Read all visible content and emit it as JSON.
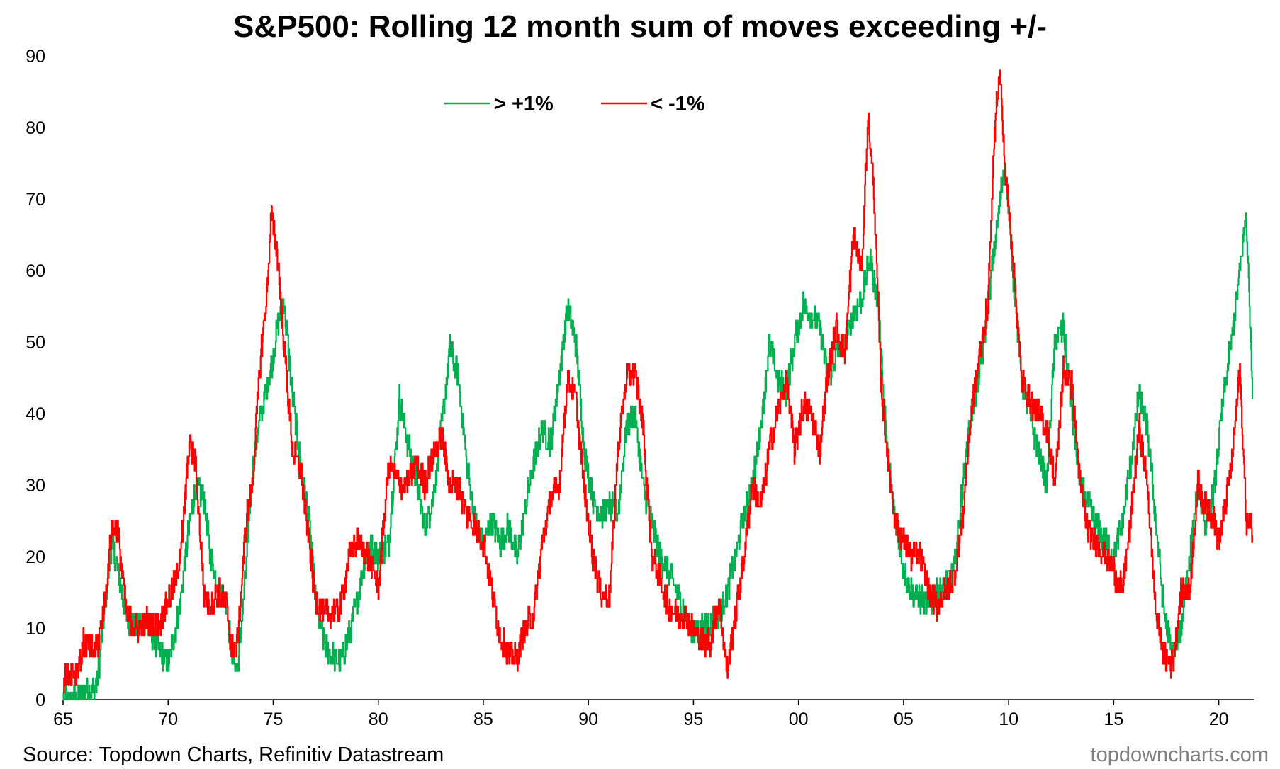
{
  "chart_data": {
    "type": "line",
    "title": "S&P500: Rolling 12 month sum of moves exceeding +/-",
    "xlabel": "",
    "ylabel": "",
    "xlim": [
      1965,
      2021.7
    ],
    "ylim": [
      0,
      90
    ],
    "yticks": [
      0,
      10,
      20,
      30,
      40,
      50,
      60,
      70,
      80,
      90
    ],
    "xticks": [
      {
        "year": 1965,
        "label": "65"
      },
      {
        "year": 1970,
        "label": "70"
      },
      {
        "year": 1975,
        "label": "75"
      },
      {
        "year": 1980,
        "label": "80"
      },
      {
        "year": 1985,
        "label": "85"
      },
      {
        "year": 1990,
        "label": "90"
      },
      {
        "year": 1995,
        "label": "95"
      },
      {
        "year": 2000,
        "label": "00"
      },
      {
        "year": 2005,
        "label": "05"
      },
      {
        "year": 2010,
        "label": "10"
      },
      {
        "year": 2015,
        "label": "15"
      },
      {
        "year": 2020,
        "label": "20"
      }
    ],
    "grid": false,
    "legend_position": "top-center",
    "series": [
      {
        "name": "> +1%",
        "color": "#00b050",
        "x": [
          1965.0,
          1965.5,
          1966.0,
          1966.3,
          1966.6,
          1967.0,
          1967.3,
          1967.6,
          1968.0,
          1968.5,
          1969.0,
          1969.5,
          1970.0,
          1970.5,
          1970.9,
          1971.3,
          1971.7,
          1972.0,
          1972.4,
          1972.8,
          1973.0,
          1973.3,
          1973.7,
          1974.0,
          1974.4,
          1974.8,
          1975.2,
          1975.5,
          1975.9,
          1976.3,
          1976.7,
          1977.0,
          1977.4,
          1977.8,
          1978.2,
          1978.6,
          1979.0,
          1979.5,
          1980.0,
          1980.5,
          1981.0,
          1981.4,
          1981.8,
          1982.2,
          1982.6,
          1983.0,
          1983.4,
          1983.8,
          1984.2,
          1984.6,
          1985.0,
          1985.4,
          1985.8,
          1986.2,
          1986.6,
          1987.0,
          1987.4,
          1987.8,
          1988.2,
          1988.6,
          1989.0,
          1989.4,
          1989.8,
          1990.2,
          1990.6,
          1991.0,
          1991.4,
          1991.8,
          1992.2,
          1992.6,
          1993.0,
          1993.4,
          1993.8,
          1994.2,
          1994.6,
          1995.0,
          1995.4,
          1995.8,
          1996.2,
          1996.6,
          1997.0,
          1997.4,
          1997.8,
          1998.2,
          1998.6,
          1999.0,
          1999.4,
          1999.8,
          2000.2,
          2000.6,
          2001.0,
          2001.4,
          2001.8,
          2002.2,
          2002.6,
          2003.0,
          2003.4,
          2003.8,
          2004.2,
          2004.6,
          2005.0,
          2005.4,
          2005.8,
          2006.2,
          2006.6,
          2007.0,
          2007.4,
          2007.8,
          2008.2,
          2008.6,
          2009.0,
          2009.4,
          2009.8,
          2010.2,
          2010.6,
          2011.0,
          2011.4,
          2011.8,
          2012.2,
          2012.6,
          2013.0,
          2013.4,
          2013.8,
          2014.2,
          2014.6,
          2015.0,
          2015.4,
          2015.8,
          2016.2,
          2016.6,
          2017.0,
          2017.4,
          2017.8,
          2018.2,
          2018.6,
          2019.0,
          2019.4,
          2019.8,
          2020.2,
          2020.6,
          2021.0,
          2021.3,
          2021.6
        ],
        "y": [
          0,
          0,
          1,
          1,
          2,
          13,
          22,
          18,
          12,
          10,
          11,
          7,
          5,
          12,
          22,
          30,
          28,
          20,
          16,
          13,
          7,
          4,
          18,
          32,
          40,
          45,
          52,
          56,
          43,
          33,
          25,
          14,
          8,
          6,
          5,
          9,
          14,
          22,
          20,
          22,
          42,
          36,
          31,
          24,
          28,
          38,
          49,
          45,
          33,
          25,
          22,
          25,
          22,
          24,
          20,
          27,
          33,
          38,
          36,
          45,
          55,
          50,
          35,
          28,
          26,
          27,
          26,
          38,
          40,
          30,
          25,
          20,
          18,
          15,
          12,
          9,
          10,
          11,
          12,
          15,
          20,
          26,
          30,
          38,
          50,
          45,
          43,
          50,
          55,
          54,
          52,
          45,
          48,
          50,
          54,
          56,
          62,
          55,
          35,
          25,
          18,
          15,
          14,
          13,
          15,
          16,
          18,
          30,
          40,
          45,
          55,
          65,
          75,
          60,
          45,
          40,
          35,
          30,
          50,
          52,
          40,
          30,
          27,
          24,
          22,
          20,
          25,
          33,
          43,
          38,
          25,
          12,
          6,
          10,
          20,
          30,
          24,
          30,
          42,
          50,
          60,
          68,
          43
        ]
      },
      {
        "name": "< -1%",
        "color": "#ff0000",
        "x": [
          1965.0,
          1965.3,
          1965.6,
          1966.0,
          1966.3,
          1966.6,
          1967.0,
          1967.3,
          1967.6,
          1968.0,
          1968.5,
          1969.0,
          1969.5,
          1970.0,
          1970.4,
          1970.7,
          1971.0,
          1971.3,
          1971.7,
          1972.0,
          1972.4,
          1972.8,
          1973.0,
          1973.3,
          1973.7,
          1974.0,
          1974.4,
          1974.7,
          1974.9,
          1975.2,
          1975.5,
          1975.9,
          1976.3,
          1976.7,
          1977.0,
          1977.4,
          1977.8,
          1978.2,
          1978.6,
          1979.0,
          1979.5,
          1980.0,
          1980.5,
          1981.0,
          1981.4,
          1981.8,
          1982.2,
          1982.6,
          1983.0,
          1983.4,
          1983.8,
          1984.2,
          1984.6,
          1985.0,
          1985.4,
          1985.8,
          1986.2,
          1986.6,
          1987.0,
          1987.4,
          1987.8,
          1988.2,
          1988.6,
          1989.0,
          1989.4,
          1989.8,
          1990.2,
          1990.6,
          1991.0,
          1991.4,
          1991.8,
          1992.2,
          1992.6,
          1993.0,
          1993.4,
          1993.8,
          1994.2,
          1994.6,
          1995.0,
          1995.4,
          1995.8,
          1996.2,
          1996.6,
          1997.0,
          1997.4,
          1997.8,
          1998.2,
          1998.6,
          1999.0,
          1999.4,
          1999.8,
          2000.2,
          2000.6,
          2001.0,
          2001.4,
          2001.8,
          2002.2,
          2002.6,
          2003.0,
          2003.3,
          2003.6,
          2003.9,
          2004.2,
          2004.6,
          2005.0,
          2005.4,
          2005.8,
          2006.2,
          2006.6,
          2007.0,
          2007.4,
          2007.8,
          2008.2,
          2008.6,
          2009.0,
          2009.2,
          2009.4,
          2009.6,
          2009.8,
          2010.2,
          2010.6,
          2011.0,
          2011.4,
          2011.8,
          2012.2,
          2012.6,
          2013.0,
          2013.4,
          2013.8,
          2014.2,
          2014.6,
          2015.0,
          2015.4,
          2015.8,
          2016.2,
          2016.6,
          2017.0,
          2017.4,
          2017.8,
          2018.2,
          2018.6,
          2019.0,
          2019.4,
          2019.8,
          2020.0,
          2020.2,
          2020.6,
          2021.0,
          2021.3,
          2021.6
        ],
        "y": [
          3,
          4,
          4,
          8,
          7,
          7,
          14,
          24,
          24,
          12,
          10,
          11,
          10,
          14,
          17,
          24,
          36,
          33,
          15,
          13,
          15,
          13,
          7,
          8,
          25,
          30,
          48,
          57,
          68,
          62,
          50,
          35,
          32,
          22,
          14,
          12,
          12,
          13,
          20,
          22,
          20,
          16,
          33,
          30,
          30,
          33,
          30,
          34,
          37,
          30,
          30,
          26,
          24,
          22,
          15,
          9,
          6,
          6,
          10,
          12,
          22,
          28,
          30,
          45,
          42,
          29,
          20,
          15,
          14,
          35,
          45,
          46,
          38,
          20,
          17,
          13,
          12,
          12,
          10,
          8,
          8,
          14,
          4,
          12,
          20,
          30,
          27,
          35,
          40,
          45,
          35,
          41,
          40,
          35,
          46,
          52,
          48,
          65,
          60,
          82,
          70,
          45,
          35,
          25,
          22,
          20,
          20,
          15,
          13,
          15,
          17,
          25,
          40,
          48,
          55,
          70,
          84,
          87,
          75,
          62,
          45,
          42,
          40,
          38,
          30,
          46,
          44,
          30,
          23,
          22,
          20,
          18,
          15,
          25,
          38,
          30,
          12,
          6,
          5,
          15,
          15,
          30,
          27,
          25,
          22,
          25,
          33,
          46,
          25,
          24
        ]
      }
    ]
  },
  "source": "Source: Topdown Charts, Refinitiv Datastream",
  "brand": "topdowncharts.com"
}
